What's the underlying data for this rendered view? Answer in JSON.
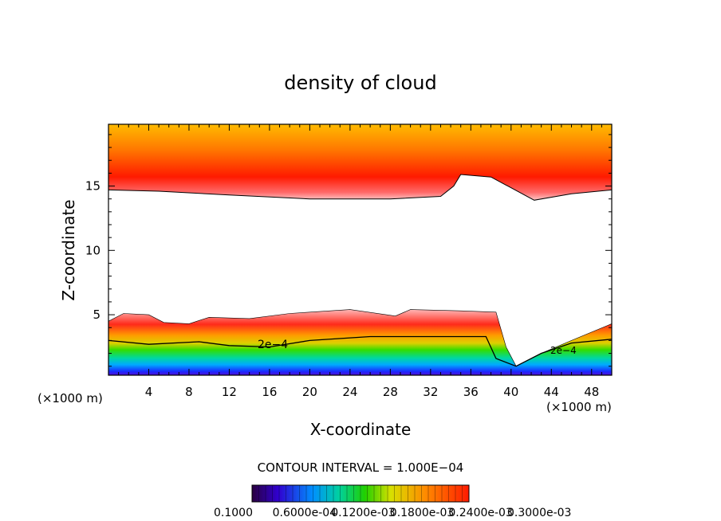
{
  "chart_data": {
    "type": "filled-contour",
    "title": "density of cloud",
    "xlabel": "X-coordinate",
    "ylabel": "Z-coordinate",
    "x_unit_left": "(×1000 m)",
    "x_unit_right": "(×1000 m)",
    "xlim": [
      0,
      50
    ],
    "ylim": [
      0.3,
      19.8
    ],
    "x_ticks": [
      4,
      8,
      12,
      16,
      20,
      24,
      28,
      32,
      36,
      40,
      44,
      48
    ],
    "y_ticks": [
      5,
      10,
      15
    ],
    "contour_interval_label": "CONTOUR INTERVAL = 1.000E−04",
    "contour_labels": [
      "2e−4",
      "2e−4"
    ],
    "colorbar_labels": [
      "0.1000",
      "0.6000e-04",
      "0.1200e-03",
      "0.1800e-03",
      "0.2400e-03",
      "0.3000e-03"
    ],
    "colorbar_range": [
      0.0,
      0.00032
    ],
    "upper_cloud_boundary": [
      {
        "x": 0,
        "z": 14.7
      },
      {
        "x": 5,
        "z": 14.6
      },
      {
        "x": 12,
        "z": 14.3
      },
      {
        "x": 20,
        "z": 14.0
      },
      {
        "x": 28,
        "z": 14.0
      },
      {
        "x": 33,
        "z": 14.2
      },
      {
        "x": 34.3,
        "z": 15.0
      },
      {
        "x": 35,
        "z": 15.9
      },
      {
        "x": 38,
        "z": 15.7
      },
      {
        "x": 42.3,
        "z": 13.9
      },
      {
        "x": 46,
        "z": 14.4
      },
      {
        "x": 50,
        "z": 14.7
      }
    ],
    "lower_cloud_top": [
      {
        "x": 0,
        "z": 4.5
      },
      {
        "x": 1.5,
        "z": 5.1
      },
      {
        "x": 4,
        "z": 5.0
      },
      {
        "x": 5.5,
        "z": 4.4
      },
      {
        "x": 8,
        "z": 4.3
      },
      {
        "x": 10,
        "z": 4.8
      },
      {
        "x": 14,
        "z": 4.7
      },
      {
        "x": 18,
        "z": 5.1
      },
      {
        "x": 24,
        "z": 5.4
      },
      {
        "x": 28.5,
        "z": 4.9
      },
      {
        "x": 30,
        "z": 5.4
      },
      {
        "x": 35,
        "z": 5.3
      },
      {
        "x": 38.5,
        "z": 5.2
      },
      {
        "x": 39.5,
        "z": 2.5
      },
      {
        "x": 40.5,
        "z": 1.0
      },
      {
        "x": 43,
        "z": 2.0
      },
      {
        "x": 46,
        "z": 3.0
      },
      {
        "x": 50,
        "z": 4.3
      }
    ],
    "contour_2e4": [
      {
        "x": 0,
        "z": 3.0
      },
      {
        "x": 4,
        "z": 2.7
      },
      {
        "x": 9,
        "z": 2.9
      },
      {
        "x": 12,
        "z": 2.6
      },
      {
        "x": 16,
        "z": 2.5
      },
      {
        "x": 20,
        "z": 3.0
      },
      {
        "x": 26,
        "z": 3.3
      },
      {
        "x": 32,
        "z": 3.3
      },
      {
        "x": 37.5,
        "z": 3.3
      },
      {
        "x": 38.5,
        "z": 1.6
      },
      {
        "x": 40.5,
        "z": 1.0
      },
      {
        "x": 43,
        "z": 2.0
      },
      {
        "x": 46,
        "z": 2.8
      },
      {
        "x": 50,
        "z": 3.1
      }
    ]
  }
}
